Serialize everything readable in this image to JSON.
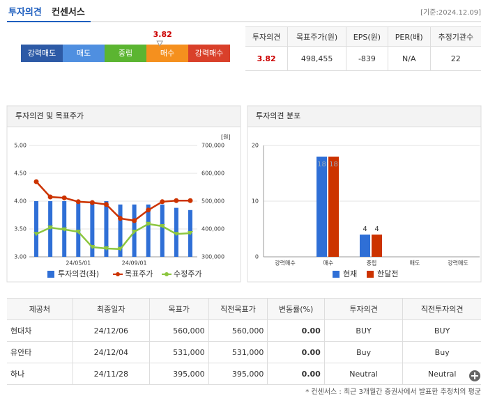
{
  "header": {
    "title_blue": "투자의견",
    "title_rest": "컨센서스",
    "date": "[기준:2024.12.09]"
  },
  "opinion_scale": {
    "labels": [
      "강력매도",
      "매도",
      "중립",
      "매수",
      "강력매수"
    ],
    "colors": [
      "#2d5aa6",
      "#4f8fe0",
      "#5bb531",
      "#f5901e",
      "#d9402a"
    ],
    "value": 3.82
  },
  "summary": {
    "headers": [
      "투자의견",
      "목표주가(원)",
      "EPS(원)",
      "PER(배)",
      "추정기관수"
    ],
    "values": [
      "3.82",
      "498,455",
      "-839",
      "N/A",
      "22"
    ]
  },
  "chart_data": [
    {
      "type": "combo",
      "title": "투자의견 및 목표주가",
      "categories": [
        null,
        null,
        null,
        "24/05/01",
        null,
        null,
        null,
        "24/09/01",
        null,
        null,
        null,
        null
      ],
      "series": [
        {
          "name": "투자의견(좌)",
          "type": "bar",
          "color": "#2f6fd6",
          "axis": "y",
          "values": [
            4.0,
            4.0,
            4.0,
            3.96,
            3.96,
            4.0,
            3.94,
            3.94,
            3.94,
            3.94,
            3.88,
            3.84
          ]
        },
        {
          "name": "목표주가",
          "type": "line",
          "color": "#cc3300",
          "axis": "y2",
          "values": [
            570000,
            515000,
            512000,
            498000,
            495000,
            488000,
            438000,
            430000,
            468000,
            498000,
            502000,
            502000
          ]
        },
        {
          "name": "수정주가",
          "type": "line",
          "color": "#8cc63f",
          "axis": "y2",
          "values": [
            382000,
            405000,
            398000,
            390000,
            335000,
            330000,
            328000,
            390000,
            418000,
            410000,
            382000,
            385000
          ]
        }
      ],
      "ylim": [
        3,
        5
      ],
      "yticks": [
        {
          "value": 3,
          "label": "3.00"
        },
        {
          "value": 3.5,
          "label": "3.50"
        },
        {
          "value": 4,
          "label": "4.00"
        },
        {
          "value": 4.5,
          "label": "4.50"
        },
        {
          "value": 5,
          "label": "5.00"
        }
      ],
      "y2label": "[원]",
      "y2lim": [
        300000,
        700000
      ],
      "y2ticks": [
        {
          "value": 300000,
          "label": "300,000"
        },
        {
          "value": 400000,
          "label": "400,000"
        },
        {
          "value": 500000,
          "label": "500,000"
        },
        {
          "value": 600000,
          "label": "600,000"
        },
        {
          "value": 700000,
          "label": "700,000"
        }
      ],
      "grid": true
    },
    {
      "type": "bar",
      "title": "투자의견 분포",
      "categories": [
        "강력매수",
        "매수",
        "중립",
        "매도",
        "강력매도"
      ],
      "series": [
        {
          "name": "현재",
          "color": "#2f6fd6",
          "values": [
            0,
            18,
            4,
            0,
            0
          ]
        },
        {
          "name": "한달전",
          "color": "#cc3300",
          "values": [
            0,
            18,
            4,
            0,
            0
          ]
        }
      ],
      "ylim": [
        0,
        20
      ],
      "yticks": [
        0,
        10,
        20
      ],
      "grid": true
    }
  ],
  "table": {
    "headers": [
      "제공처",
      "최종일자",
      "목표가",
      "직전목표가",
      "변동률(%)",
      "투자의견",
      "직전투자의견"
    ],
    "rows": [
      [
        "현대차",
        "24/12/06",
        "560,000",
        "560,000",
        "0.00",
        "BUY",
        "BUY"
      ],
      [
        "유안타",
        "24/12/04",
        "531,000",
        "531,000",
        "0.00",
        "Buy",
        "Buy"
      ],
      [
        "하나",
        "24/11/28",
        "395,000",
        "395,000",
        "0.00",
        "Neutral",
        "Neutral"
      ]
    ]
  },
  "footnote": "* 컨센서스 : 최근 3개월간 증권사에서 발표한 추정치의 평균"
}
